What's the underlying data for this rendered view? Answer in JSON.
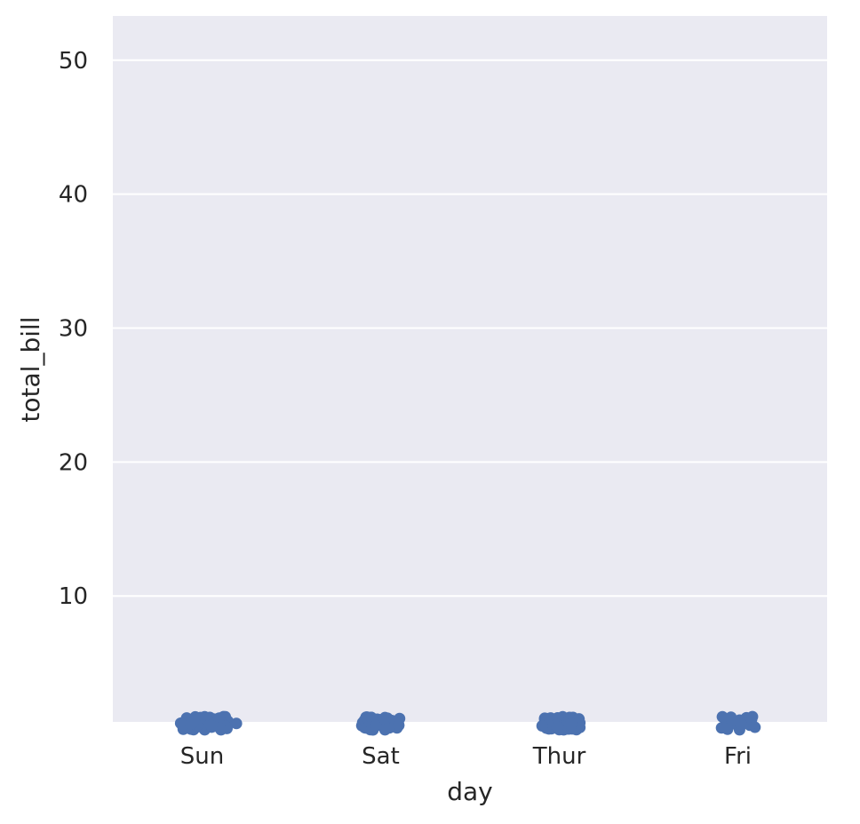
{
  "chart_data": {
    "type": "scatter",
    "subtype": "strip",
    "title": "",
    "xlabel": "day",
    "ylabel": "total_bill",
    "categories": [
      "Sun",
      "Sat",
      "Thur",
      "Fri"
    ],
    "ylim": [
      0.6,
      53.3
    ],
    "yticks": [
      "10",
      "20",
      "30",
      "40",
      "50"
    ],
    "grid": true,
    "colors": {
      "point": "#4c72b0",
      "background": "#eaeaf2",
      "grid": "#ffffff"
    },
    "points": {
      "Sun": [
        [
          0.48,
          0.4
        ],
        [
          0.66,
          0.3
        ],
        [
          0.2,
          -0.2
        ],
        [
          0.76,
          -0.12
        ],
        [
          0.64,
          -0.2
        ],
        [
          0.26,
          -0.04
        ],
        [
          0.02,
          -0.1
        ],
        [
          0.45,
          0.14
        ],
        [
          0.37,
          0.26
        ],
        [
          0.29,
          0.11
        ],
        [
          0.05,
          -0.22
        ],
        [
          0.2,
          -0.22
        ],
        [
          0.12,
          -0.2
        ],
        [
          0.87,
          -0.04
        ],
        [
          0.24,
          -0.05
        ],
        [
          0.34,
          -0.04
        ],
        [
          0.45,
          0.14
        ],
        [
          0.82,
          -0.04
        ],
        [
          0.48,
          -0.04
        ],
        [
          0.46,
          0.2
        ],
        [
          0.26,
          0.26
        ],
        [
          0.27,
          0.23
        ],
        [
          0.32,
          0.16
        ],
        [
          0.99,
          0.25
        ],
        [
          0.98,
          0.27
        ],
        [
          0.34,
          0.21
        ],
        [
          0.48,
          0.29
        ],
        [
          0.01,
          0.03
        ],
        [
          0.66,
          0.14
        ],
        [
          0.88,
          0.2
        ],
        [
          0.53,
          0.3
        ],
        [
          0.51,
          0.22
        ],
        [
          0.52,
          -0.14
        ],
        [
          0.49,
          -0.05
        ],
        [
          0.52,
          -0.07
        ],
        [
          0.55,
          -0.1
        ],
        [
          0.58,
          0.05
        ],
        [
          0.98,
          0.03
        ],
        [
          0.81,
          0.14
        ],
        [
          0.15,
          0.03
        ],
        [
          0.01,
          0.22
        ],
        [
          0.77,
          0.11
        ],
        [
          0.89,
          -0.18
        ],
        [
          0.5,
          -0.02
        ],
        [
          0.5,
          0.08
        ],
        [
          0.55,
          0.01
        ],
        [
          0.92,
          -0.02
        ],
        [
          0.97,
          -0.08
        ],
        [
          0.93,
          0.09
        ],
        [
          0.72,
          -0.08
        ],
        [
          0.75,
          0.06
        ],
        [
          0.34,
          0.29
        ],
        [
          0.58,
          0.1
        ],
        [
          0.85,
          0.19
        ],
        [
          0.53,
          -0.14
        ],
        [
          0.51,
          -0.2
        ],
        [
          0.49,
          0.24
        ],
        [
          0.11,
          0.29
        ],
        [
          0.82,
          -0.04
        ],
        [
          0.06,
          -0.13
        ],
        [
          0.26,
          -0.11
        ],
        [
          0.5,
          -0.25
        ],
        [
          0.35,
          -0.23
        ],
        [
          0.26,
          0.13
        ],
        [
          0.34,
          -0.13
        ],
        [
          0.3,
          -0.06
        ],
        [
          0.28,
          0.27
        ],
        [
          0.21,
          0.11
        ],
        [
          0.44,
          -0.07
        ],
        [
          0.4,
          0.09
        ],
        [
          0.46,
          0.13
        ],
        [
          0.6,
          -0.1
        ],
        [
          0.46,
          -0.13
        ],
        [
          0.12,
          0.21
        ],
        [
          0.29,
          0.11
        ]
      ],
      "Sat": [
        [
          0.0,
          -0.09
        ],
        [
          0.54,
          -0.21
        ],
        [
          0.51,
          -0.19
        ],
        [
          0.45,
          -0.14
        ],
        [
          0.55,
          -0.12
        ],
        [
          0.57,
          0.16
        ],
        [
          0.55,
          0.05
        ],
        [
          0.94,
          -0.17
        ],
        [
          0.64,
          0.1
        ],
        [
          0.36,
          -0.03
        ],
        [
          0.36,
          -0.1
        ],
        [
          0.25,
          0.16
        ],
        [
          0.37,
          0.21
        ],
        [
          0.57,
          -0.04
        ],
        [
          0.81,
          -0.09
        ],
        [
          0.69,
          -0.02
        ],
        [
          0.8,
          -0.04
        ],
        [
          0.76,
          0.0
        ],
        [
          0.5,
          0.08
        ],
        [
          0.87,
          -0.12
        ],
        [
          0.52,
          0.05
        ],
        [
          0.77,
          -0.04
        ],
        [
          0.75,
          -0.07
        ],
        [
          0.5,
          0.15
        ],
        [
          0.62,
          0.03
        ],
        [
          0.75,
          0.0
        ],
        [
          0.15,
          -0.18
        ],
        [
          0.54,
          0.05
        ],
        [
          0.52,
          0.11
        ],
        [
          0.95,
          -0.17
        ],
        [
          0.72,
          0.04
        ],
        [
          0.46,
          0.13
        ],
        [
          0.53,
          -0.14
        ],
        [
          0.22,
          0.12
        ],
        [
          0.26,
          -0.07
        ],
        [
          0.32,
          -0.22
        ],
        [
          0.55,
          0.16
        ],
        [
          0.63,
          0.07
        ],
        [
          0.67,
          -0.11
        ],
        [
          0.45,
          -0.04
        ],
        [
          0.5,
          -0.02
        ],
        [
          0.19,
          -0.19
        ],
        [
          0.53,
          -0.17
        ],
        [
          0.49,
          -0.13
        ],
        [
          0.66,
          -0.13
        ],
        [
          0.31,
          0.12
        ],
        [
          0.23,
          0.18
        ],
        [
          0.69,
          -0.04
        ],
        [
          0.08,
          -0.1
        ],
        [
          0.55,
          0.18
        ],
        [
          0.85,
          0.22
        ],
        [
          0.8,
          0.07
        ],
        [
          0.87,
          0.08
        ],
        [
          0.21,
          0.06
        ],
        [
          0.02,
          -0.12
        ],
        [
          0.51,
          0.13
        ],
        [
          0.15,
          0.19
        ],
        [
          0.59,
          0.16
        ],
        [
          0.3,
          -0.12
        ],
        [
          0.53,
          -0.12
        ],
        [
          0.93,
          -0.11
        ],
        [
          0.51,
          -0.11
        ],
        [
          0.27,
          0.03
        ],
        [
          0.49,
          0.11
        ],
        [
          0.71,
          -0.19
        ],
        [
          0.38,
          -0.05
        ],
        [
          0.48,
          0.11
        ],
        [
          0.45,
          0.14
        ],
        [
          0.7,
          0.13
        ],
        [
          0.49,
          0.12
        ],
        [
          0.35,
          0.02
        ],
        [
          0.46,
          0.13
        ],
        [
          0.35,
          -0.14
        ],
        [
          0.54,
          0.18
        ],
        [
          0.3,
          0.13
        ],
        [
          0.62,
          0.13
        ],
        [
          0.15,
          0.1
        ],
        [
          0.92,
          0.05
        ],
        [
          0.14,
          -0.16
        ],
        [
          0.96,
          -0.16
        ],
        [
          0.01,
          0.05
        ],
        [
          0.33,
          0.21
        ],
        [
          0.72,
          0.02
        ],
        [
          0.36,
          0.04
        ],
        [
          0.93,
          -0.11
        ],
        [
          0.35,
          -0.1
        ],
        [
          0.79,
          0.03
        ],
        [
          0.3,
          -0.06
        ]
      ],
      "Thur": [
        [
          0.72,
          -0.12
        ],
        [
          0.66,
          0.07
        ],
        [
          0.12,
          0.05
        ],
        [
          0.22,
          0.02
        ],
        [
          0.76,
          -0.02
        ],
        [
          0.3,
          0.03
        ],
        [
          0.01,
          0.05
        ],
        [
          0.93,
          0.16
        ],
        [
          0.71,
          -0.02
        ],
        [
          0.98,
          0.04
        ],
        [
          0.87,
          -0.17
        ],
        [
          0.21,
          0.03
        ],
        [
          0.31,
          0.04
        ],
        [
          0.43,
          0.07
        ],
        [
          0.6,
          0.14
        ],
        [
          0.28,
          -0.05
        ],
        [
          0.24,
          -0.12
        ],
        [
          0.89,
          -0.1
        ],
        [
          0.65,
          0.01
        ],
        [
          0.46,
          -0.05
        ],
        [
          0.23,
          -0.02
        ],
        [
          0.57,
          0.01
        ],
        [
          0.26,
          0.11
        ],
        [
          0.19,
          -0.14
        ],
        [
          0.73,
          0.22
        ],
        [
          0.07,
          0.11
        ],
        [
          0.93,
          0.12
        ],
        [
          0.33,
          -0.05
        ],
        [
          0.02,
          0.2
        ],
        [
          0.09,
          -0.09
        ],
        [
          0.4,
          -0.14
        ],
        [
          0.42,
          -0.06
        ],
        [
          0.1,
          0.17
        ],
        [
          0.08,
          -0.12
        ],
        [
          0.53,
          0.24
        ],
        [
          0.82,
          -0.12
        ],
        [
          0.57,
          -0.01
        ],
        [
          0.24,
          0.17
        ],
        [
          0.16,
          -0.04
        ],
        [
          0.51,
          -0.1
        ],
        [
          0.59,
          -0.07
        ],
        [
          0.64,
          -0.06
        ],
        [
          0.82,
          0.23
        ],
        [
          0.43,
          0.08
        ],
        [
          0.14,
          0.2
        ],
        [
          0.16,
          -0.02
        ],
        [
          0.72,
          0.03
        ],
        [
          0.28,
          -0.03
        ],
        [
          0.79,
          -0.01
        ],
        [
          0.9,
          -0.02
        ],
        [
          0.08,
          0.15
        ],
        [
          0.14,
          -0.14
        ],
        [
          0.05,
          0.07
        ],
        [
          0.17,
          0.23
        ],
        [
          0.3,
          0.03
        ],
        [
          0.8,
          -0.17
        ],
        [
          0.13,
          -0.15
        ],
        [
          0.18,
          0.24
        ],
        [
          0.02,
          0.0
        ],
        [
          0.13,
          0.15
        ],
        [
          0.32,
          0.14
        ],
        [
          0.84,
          -0.14
        ],
        [
          0.48,
          0.14
        ],
        [
          0.36,
          -0.14
        ],
        [
          0.3,
          -0.2
        ],
        [
          0.41,
          -0.03
        ],
        [
          0.23,
          -0.02
        ]
      ],
      "Fri": [
        [
          0.44,
          -0.03
        ],
        [
          0.2,
          0.2
        ],
        [
          0.55,
          -0.14
        ],
        [
          0.26,
          -0.15
        ],
        [
          0.91,
          0.1
        ],
        [
          0.48,
          0.07
        ],
        [
          0.15,
          -0.19
        ],
        [
          0.01,
          0.02
        ],
        [
          0.35,
          0.14
        ],
        [
          0.79,
          0.16
        ],
        [
          0.73,
          0.02
        ],
        [
          0.95,
          -0.08
        ],
        [
          0.3,
          -0.14
        ],
        [
          0.99,
          0.17
        ],
        [
          0.1,
          -0.13
        ],
        [
          0.43,
          0.04
        ],
        [
          0.05,
          -0.12
        ],
        [
          0.98,
          -0.18
        ],
        [
          0.79,
          -0.07
        ]
      ]
    }
  }
}
